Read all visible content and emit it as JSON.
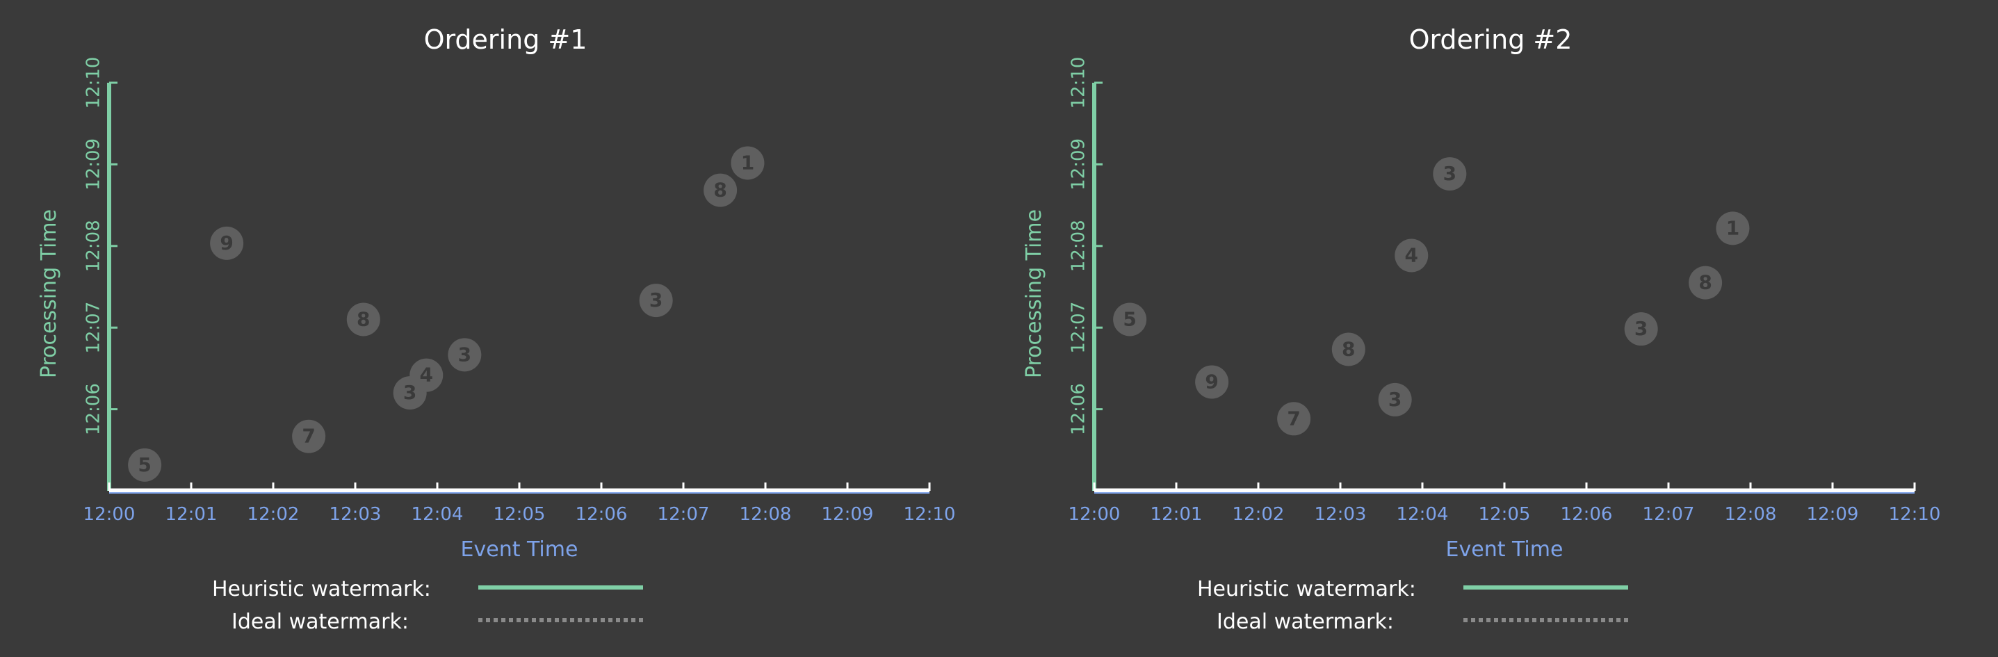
{
  "colors": {
    "background": "#3a3a3a",
    "processing_axis": "#7fcfa6",
    "event_axis": "#7ea3ea",
    "point": "#5f5f5f",
    "heuristic_line": "#7fcfa6",
    "ideal_line": "#8a8a8a"
  },
  "chart_data": [
    {
      "type": "scatter",
      "title": "Ordering #1",
      "xlabel": "Event Time",
      "ylabel": "Processing Time",
      "x_ticks": [
        "12:00",
        "12:01",
        "12:02",
        "12:03",
        "12:04",
        "12:05",
        "12:06",
        "12:07",
        "12:08",
        "12:09",
        "12:10"
      ],
      "y_ticks": [
        "12:06",
        "12:07",
        "12:08",
        "12:09",
        "12:10"
      ],
      "xlim": [
        "12:00",
        "12:10"
      ],
      "ylim": [
        "12:05",
        "12:10"
      ],
      "points": [
        {
          "label": "5",
          "x": "12:00:26",
          "y": "12:05:19"
        },
        {
          "label": "9",
          "x": "12:01:26",
          "y": "12:08:02"
        },
        {
          "label": "7",
          "x": "12:02:26",
          "y": "12:05:40"
        },
        {
          "label": "8",
          "x": "12:03:06",
          "y": "12:07:06"
        },
        {
          "label": "3",
          "x": "12:03:40",
          "y": "12:06:12"
        },
        {
          "label": "4",
          "x": "12:03:52",
          "y": "12:06:25"
        },
        {
          "label": "3",
          "x": "12:04:20",
          "y": "12:06:40"
        },
        {
          "label": "3",
          "x": "12:06:40",
          "y": "12:07:20"
        },
        {
          "label": "8",
          "x": "12:07:27",
          "y": "12:08:41"
        },
        {
          "label": "1",
          "x": "12:07:47",
          "y": "12:09:01"
        }
      ],
      "legend": [
        {
          "label": "Heuristic watermark:",
          "style": "solid"
        },
        {
          "label": "Ideal watermark:",
          "style": "dotted"
        }
      ]
    },
    {
      "type": "scatter",
      "title": "Ordering #2",
      "xlabel": "Event Time",
      "ylabel": "Processing Time",
      "x_ticks": [
        "12:00",
        "12:01",
        "12:02",
        "12:03",
        "12:04",
        "12:05",
        "12:06",
        "12:07",
        "12:08",
        "12:09",
        "12:10"
      ],
      "y_ticks": [
        "12:06",
        "12:07",
        "12:08",
        "12:09",
        "12:10"
      ],
      "xlim": [
        "12:00",
        "12:10"
      ],
      "ylim": [
        "12:05",
        "12:10"
      ],
      "points": [
        {
          "label": "5",
          "x": "12:00:26",
          "y": "12:07:06"
        },
        {
          "label": "9",
          "x": "12:01:26",
          "y": "12:06:20"
        },
        {
          "label": "7",
          "x": "12:02:26",
          "y": "12:05:53"
        },
        {
          "label": "8",
          "x": "12:03:06",
          "y": "12:06:44"
        },
        {
          "label": "3",
          "x": "12:03:40",
          "y": "12:06:07"
        },
        {
          "label": "4",
          "x": "12:03:52",
          "y": "12:07:53"
        },
        {
          "label": "3",
          "x": "12:04:20",
          "y": "12:08:53"
        },
        {
          "label": "3",
          "x": "12:06:40",
          "y": "12:06:59"
        },
        {
          "label": "8",
          "x": "12:07:27",
          "y": "12:07:33"
        },
        {
          "label": "1",
          "x": "12:07:47",
          "y": "12:08:13"
        }
      ],
      "legend": [
        {
          "label": "Heuristic watermark:",
          "style": "solid"
        },
        {
          "label": "Ideal watermark:",
          "style": "dotted"
        }
      ]
    }
  ]
}
